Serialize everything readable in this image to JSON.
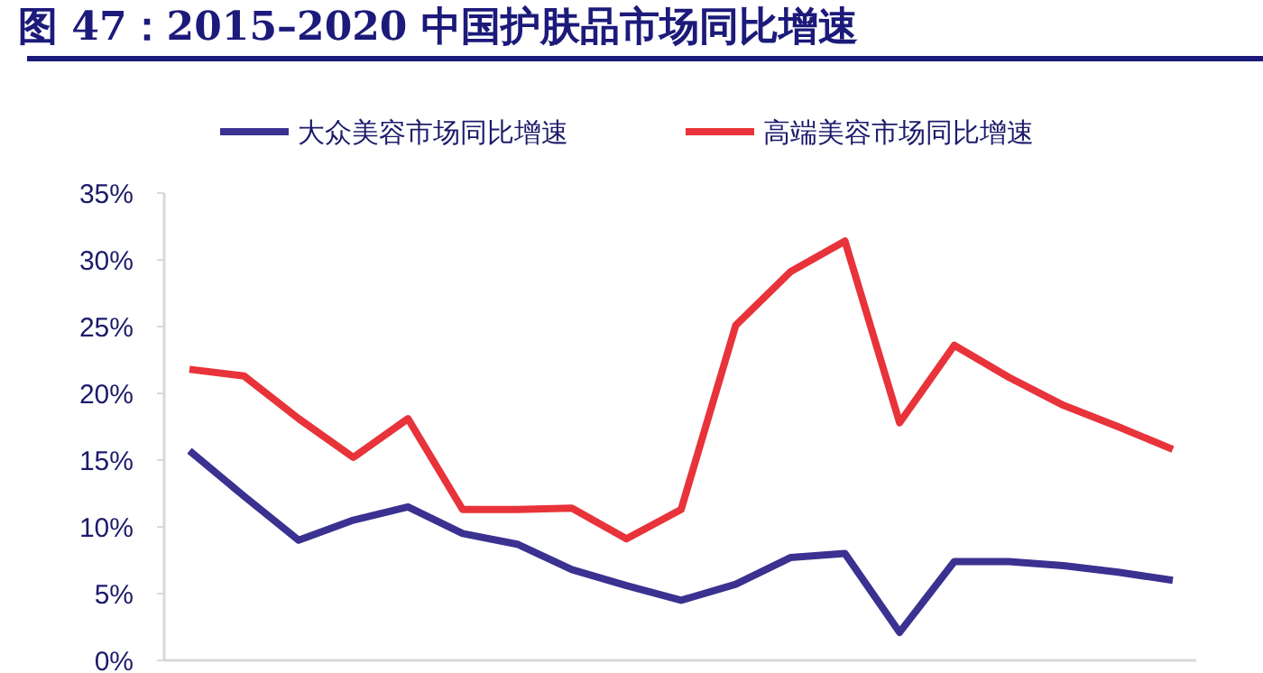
{
  "chart_data": {
    "type": "line",
    "title": "图 47：2015–2020 中国护肤品市场同比增速",
    "categories": [
      null,
      null,
      null,
      null,
      null,
      null,
      null,
      null,
      null,
      null,
      null,
      null,
      null,
      null,
      null,
      null,
      null,
      null,
      null
    ],
    "series": [
      {
        "name": "大众美容市场同比增速",
        "color": "#3b3191",
        "values": [
          15.7,
          12.3,
          9.0,
          10.5,
          11.5,
          9.5,
          8.7,
          6.8,
          5.6,
          4.5,
          5.7,
          7.7,
          8.0,
          2.1,
          7.4,
          7.4,
          7.1,
          6.6,
          6.0
        ]
      },
      {
        "name": "高端美容市场同比增速",
        "color": "#e8333a",
        "values": [
          21.8,
          21.3,
          18.1,
          15.2,
          18.1,
          11.3,
          11.3,
          11.4,
          9.1,
          11.3,
          25.1,
          29.1,
          31.4,
          17.8,
          23.6,
          21.2,
          19.1,
          17.5,
          15.8
        ]
      }
    ],
    "ylim": [
      0,
      35
    ],
    "yticks": [
      {
        "value": 0,
        "label": "0%"
      },
      {
        "value": 5,
        "label": "5%"
      },
      {
        "value": 10,
        "label": "10%"
      },
      {
        "value": 15,
        "label": "15%"
      },
      {
        "value": 20,
        "label": "20%"
      },
      {
        "value": 25,
        "label": "25%"
      },
      {
        "value": 30,
        "label": "30%"
      },
      {
        "value": 35,
        "label": "35%"
      }
    ],
    "grid": false,
    "legend": "top",
    "marker": "none",
    "line_style": "solid"
  }
}
